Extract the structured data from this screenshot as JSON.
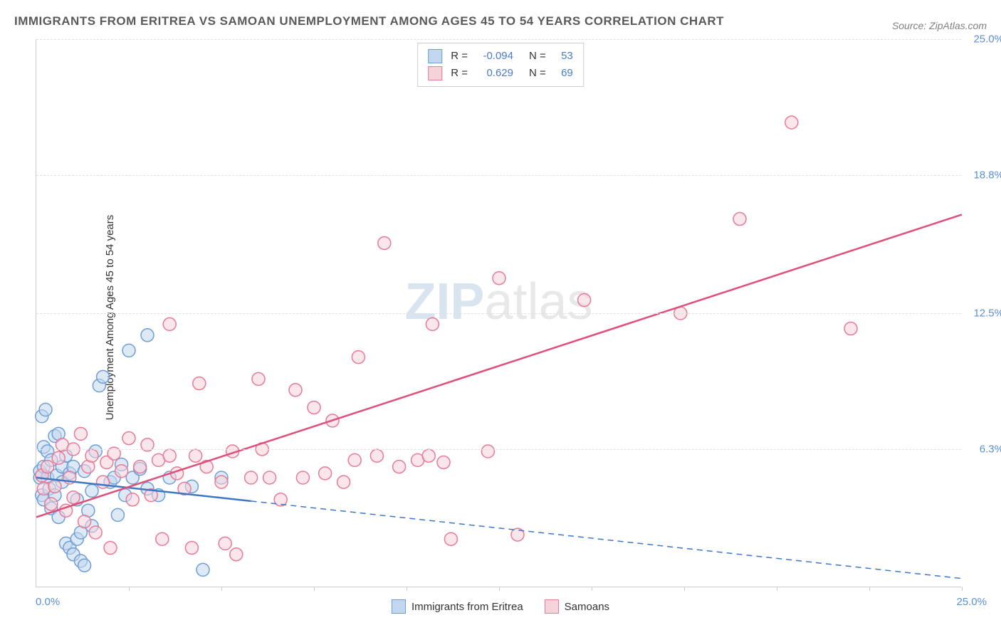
{
  "title": "IMMIGRANTS FROM ERITREA VS SAMOAN UNEMPLOYMENT AMONG AGES 45 TO 54 YEARS CORRELATION CHART",
  "source": "Source: ZipAtlas.com",
  "watermark_a": "ZIP",
  "watermark_b": "atlas",
  "y_axis_label": "Unemployment Among Ages 45 to 54 years",
  "chart": {
    "type": "scatter",
    "xlim": [
      0,
      25
    ],
    "ylim": [
      0,
      25
    ],
    "x_origin_label": "0.0%",
    "x_max_label": "25.0%",
    "y_ticks": [
      {
        "v": 6.3,
        "label": "6.3%"
      },
      {
        "v": 12.5,
        "label": "12.5%"
      },
      {
        "v": 18.8,
        "label": "18.8%"
      },
      {
        "v": 25.0,
        "label": "25.0%"
      }
    ],
    "x_tick_positions": [
      2.5,
      5,
      7.5,
      10,
      12.5,
      15,
      17.5,
      20,
      22.5,
      25
    ],
    "background_color": "#ffffff",
    "grid_color": "#e0e0e0",
    "axis_color": "#cccccc",
    "label_color": "#5b8fd6",
    "marker_radius": 9,
    "marker_stroke_width": 1.5,
    "trend_line_width": 2.5,
    "series": [
      {
        "name": "Immigrants from Eritrea",
        "fill": "#c3d7ef",
        "stroke": "#6e9ed8",
        "line_color": "#3d78c7",
        "R": "-0.094",
        "N": "53",
        "trend": {
          "x1": 0,
          "y1": 5.0,
          "x2": 25,
          "y2": 0.4,
          "solid_until_x": 5.8
        },
        "points": [
          [
            0.1,
            5.0
          ],
          [
            0.1,
            5.3
          ],
          [
            0.15,
            4.2
          ],
          [
            0.15,
            7.8
          ],
          [
            0.2,
            6.4
          ],
          [
            0.2,
            5.5
          ],
          [
            0.2,
            4.0
          ],
          [
            0.25,
            8.1
          ],
          [
            0.3,
            5.0
          ],
          [
            0.3,
            6.2
          ],
          [
            0.35,
            4.5
          ],
          [
            0.4,
            3.6
          ],
          [
            0.4,
            5.8
          ],
          [
            0.5,
            6.9
          ],
          [
            0.5,
            4.2
          ],
          [
            0.55,
            5.1
          ],
          [
            0.6,
            7.0
          ],
          [
            0.6,
            3.2
          ],
          [
            0.7,
            5.5
          ],
          [
            0.7,
            4.8
          ],
          [
            0.8,
            6.0
          ],
          [
            0.8,
            2.0
          ],
          [
            0.9,
            5.2
          ],
          [
            0.9,
            1.8
          ],
          [
            1.0,
            1.5
          ],
          [
            1.0,
            5.5
          ],
          [
            1.1,
            2.2
          ],
          [
            1.1,
            4.0
          ],
          [
            1.2,
            1.2
          ],
          [
            1.2,
            2.5
          ],
          [
            1.3,
            1.0
          ],
          [
            1.3,
            5.3
          ],
          [
            1.4,
            3.5
          ],
          [
            1.5,
            2.8
          ],
          [
            1.5,
            4.4
          ],
          [
            1.6,
            6.2
          ],
          [
            1.7,
            9.2
          ],
          [
            1.8,
            9.6
          ],
          [
            2.0,
            4.8
          ],
          [
            2.1,
            5.0
          ],
          [
            2.2,
            3.3
          ],
          [
            2.3,
            5.6
          ],
          [
            2.4,
            4.2
          ],
          [
            2.5,
            10.8
          ],
          [
            2.6,
            5.0
          ],
          [
            2.8,
            5.4
          ],
          [
            3.0,
            4.5
          ],
          [
            3.0,
            11.5
          ],
          [
            3.3,
            4.2
          ],
          [
            3.6,
            5.0
          ],
          [
            4.2,
            4.6
          ],
          [
            4.5,
            0.8
          ],
          [
            5.0,
            5.0
          ]
        ]
      },
      {
        "name": "Samoans",
        "fill": "#f6d2da",
        "stroke": "#e77a97",
        "line_color": "#e04f7a",
        "R": "0.629",
        "N": "69",
        "trend": {
          "x1": 0,
          "y1": 3.2,
          "x2": 25,
          "y2": 17.0,
          "solid_until_x": 25
        },
        "points": [
          [
            0.15,
            5.1
          ],
          [
            0.2,
            4.5
          ],
          [
            0.3,
            5.5
          ],
          [
            0.4,
            3.8
          ],
          [
            0.5,
            4.6
          ],
          [
            0.6,
            5.9
          ],
          [
            0.7,
            6.5
          ],
          [
            0.8,
            3.5
          ],
          [
            0.9,
            5.0
          ],
          [
            1.0,
            6.3
          ],
          [
            1.0,
            4.1
          ],
          [
            1.2,
            7.0
          ],
          [
            1.3,
            3.0
          ],
          [
            1.4,
            5.5
          ],
          [
            1.5,
            6.0
          ],
          [
            1.6,
            2.5
          ],
          [
            1.8,
            4.8
          ],
          [
            1.9,
            5.7
          ],
          [
            2.0,
            1.8
          ],
          [
            2.1,
            6.1
          ],
          [
            2.3,
            5.3
          ],
          [
            2.5,
            6.8
          ],
          [
            2.6,
            4.0
          ],
          [
            2.8,
            5.5
          ],
          [
            3.0,
            6.5
          ],
          [
            3.1,
            4.2
          ],
          [
            3.3,
            5.8
          ],
          [
            3.4,
            2.2
          ],
          [
            3.6,
            6.0
          ],
          [
            3.6,
            12.0
          ],
          [
            3.8,
            5.2
          ],
          [
            4.0,
            4.5
          ],
          [
            4.2,
            1.8
          ],
          [
            4.3,
            6.0
          ],
          [
            4.4,
            9.3
          ],
          [
            4.6,
            5.5
          ],
          [
            5.0,
            4.8
          ],
          [
            5.1,
            2.0
          ],
          [
            5.3,
            6.2
          ],
          [
            5.4,
            1.5
          ],
          [
            5.8,
            5.0
          ],
          [
            6.0,
            9.5
          ],
          [
            6.1,
            6.3
          ],
          [
            6.3,
            5.0
          ],
          [
            6.6,
            4.0
          ],
          [
            7.0,
            9.0
          ],
          [
            7.2,
            5.0
          ],
          [
            7.5,
            8.2
          ],
          [
            7.8,
            5.2
          ],
          [
            8.0,
            7.6
          ],
          [
            8.3,
            4.8
          ],
          [
            8.6,
            5.8
          ],
          [
            8.7,
            10.5
          ],
          [
            9.2,
            6.0
          ],
          [
            9.4,
            15.7
          ],
          [
            9.8,
            5.5
          ],
          [
            10.3,
            5.8
          ],
          [
            10.6,
            6.0
          ],
          [
            10.7,
            12.0
          ],
          [
            11.0,
            5.7
          ],
          [
            11.2,
            2.2
          ],
          [
            12.2,
            6.2
          ],
          [
            12.5,
            14.1
          ],
          [
            13.0,
            2.4
          ],
          [
            14.8,
            13.1
          ],
          [
            17.4,
            12.5
          ],
          [
            19.0,
            16.8
          ],
          [
            20.4,
            21.2
          ],
          [
            22.0,
            11.8
          ]
        ]
      }
    ]
  },
  "legend_bottom": [
    {
      "label": "Immigrants from Eritrea",
      "fill": "#c3d7ef",
      "stroke": "#6e9ed8"
    },
    {
      "label": "Samoans",
      "fill": "#f6d2da",
      "stroke": "#e77a97"
    }
  ]
}
